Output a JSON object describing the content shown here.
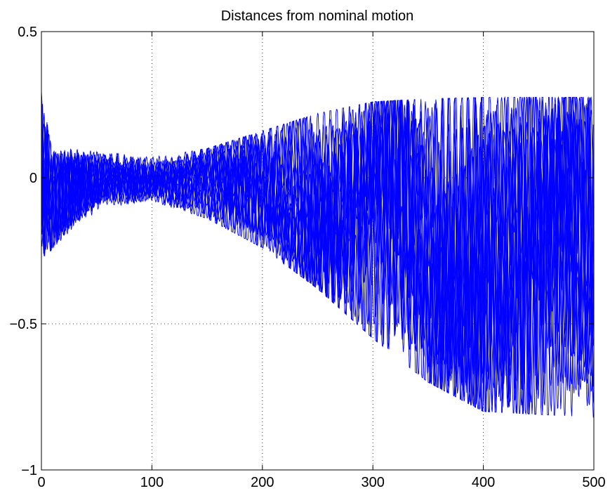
{
  "chart_data": {
    "type": "line",
    "title": "Distances from nominal motion",
    "xlabel": "",
    "ylabel": "",
    "xlim": [
      0,
      500
    ],
    "ylim": [
      -1,
      0.5
    ],
    "x_ticks": [
      0,
      100,
      200,
      300,
      400,
      500
    ],
    "y_ticks": [
      -1,
      -0.5,
      0,
      0.5
    ],
    "x_tick_labels": [
      "0",
      "100",
      "200",
      "300",
      "400",
      "500"
    ],
    "y_tick_labels": [
      "−1",
      "−0.5",
      "0",
      "0.5"
    ],
    "grid": true,
    "line_color": "#0000ff",
    "envelope": {
      "description_of_trend": "many oscillating traces; tight band near 0 around x=100, spreading to upper bound ~0.27 and lower bound ~-0.82 by x=500",
      "upper_bound": [
        [
          0,
          0.42
        ],
        [
          10,
          0.16
        ],
        [
          30,
          0.14
        ],
        [
          60,
          0.1
        ],
        [
          100,
          0.07
        ],
        [
          150,
          0.1
        ],
        [
          200,
          0.16
        ],
        [
          250,
          0.22
        ],
        [
          300,
          0.26
        ],
        [
          350,
          0.27
        ],
        [
          400,
          0.275
        ],
        [
          500,
          0.275
        ]
      ],
      "lower_bound": [
        [
          0,
          -0.4
        ],
        [
          10,
          -0.32
        ],
        [
          30,
          -0.2
        ],
        [
          60,
          -0.12
        ],
        [
          100,
          -0.08
        ],
        [
          150,
          -0.14
        ],
        [
          200,
          -0.24
        ],
        [
          250,
          -0.38
        ],
        [
          300,
          -0.55
        ],
        [
          350,
          -0.7
        ],
        [
          400,
          -0.8
        ],
        [
          500,
          -0.82
        ]
      ]
    },
    "series_count": 18
  }
}
